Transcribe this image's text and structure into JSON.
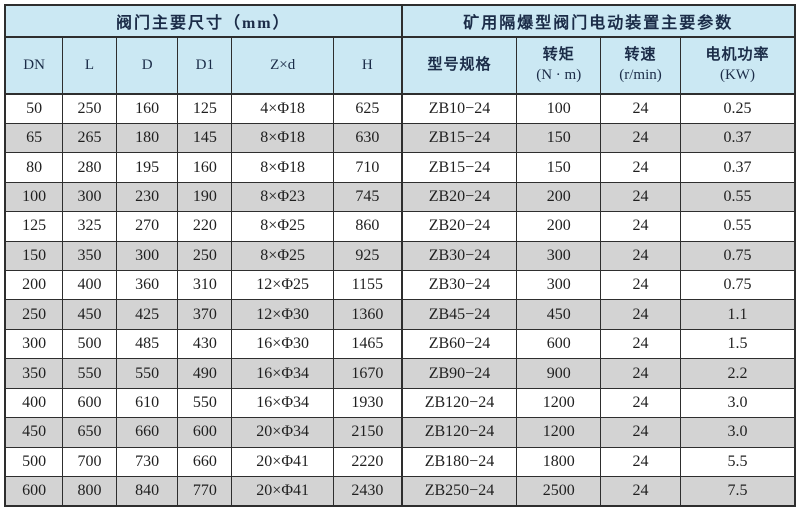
{
  "colors": {
    "page_bg": "#ffffff",
    "header_bg": "#cbe8f3",
    "row_white": "#ffffff",
    "row_gray": "#d3d3d3",
    "border": "#2e2e2e",
    "header_text": "#1b2c48",
    "data_text": "#1f1f1f"
  },
  "table": {
    "group_headers": [
      {
        "label": "阀门主要尺寸（mm）",
        "colspan": 6
      },
      {
        "label": "矿用隔爆型阀门电动装置主要参数",
        "colspan": 4
      }
    ],
    "columns": [
      {
        "key": "dn",
        "label": "DN"
      },
      {
        "key": "l",
        "label": "L"
      },
      {
        "key": "d",
        "label": "D"
      },
      {
        "key": "d1",
        "label": "D1"
      },
      {
        "key": "zxd",
        "label": "Z×d"
      },
      {
        "key": "h",
        "label": "H"
      },
      {
        "key": "model",
        "label": "型号规格"
      },
      {
        "key": "torque",
        "label": "转矩",
        "sub": "(N · m)"
      },
      {
        "key": "speed",
        "label": "转速",
        "sub": "(r/min)"
      },
      {
        "key": "power",
        "label": "电机功率",
        "sub": "(KW)"
      }
    ],
    "rows": [
      [
        "50",
        "250",
        "160",
        "125",
        "4×Φ18",
        "625",
        "ZB10−24",
        "100",
        "24",
        "0.25"
      ],
      [
        "65",
        "265",
        "180",
        "145",
        "8×Φ18",
        "630",
        "ZB15−24",
        "150",
        "24",
        "0.37"
      ],
      [
        "80",
        "280",
        "195",
        "160",
        "8×Φ18",
        "710",
        "ZB15−24",
        "150",
        "24",
        "0.37"
      ],
      [
        "100",
        "300",
        "230",
        "190",
        "8×Φ23",
        "745",
        "ZB20−24",
        "200",
        "24",
        "0.55"
      ],
      [
        "125",
        "325",
        "270",
        "220",
        "8×Φ25",
        "860",
        "ZB20−24",
        "200",
        "24",
        "0.55"
      ],
      [
        "150",
        "350",
        "300",
        "250",
        "8×Φ25",
        "925",
        "ZB30−24",
        "300",
        "24",
        "0.75"
      ],
      [
        "200",
        "400",
        "360",
        "310",
        "12×Φ25",
        "1155",
        "ZB30−24",
        "300",
        "24",
        "0.75"
      ],
      [
        "250",
        "450",
        "425",
        "370",
        "12×Φ30",
        "1360",
        "ZB45−24",
        "450",
        "24",
        "1.1"
      ],
      [
        "300",
        "500",
        "485",
        "430",
        "16×Φ30",
        "1465",
        "ZB60−24",
        "600",
        "24",
        "1.5"
      ],
      [
        "350",
        "550",
        "550",
        "490",
        "16×Φ34",
        "1670",
        "ZB90−24",
        "900",
        "24",
        "2.2"
      ],
      [
        "400",
        "600",
        "610",
        "550",
        "16×Φ34",
        "1930",
        "ZB120−24",
        "1200",
        "24",
        "3.0"
      ],
      [
        "450",
        "650",
        "660",
        "600",
        "20×Φ34",
        "2150",
        "ZB120−24",
        "1200",
        "24",
        "3.0"
      ],
      [
        "500",
        "700",
        "730",
        "660",
        "20×Φ41",
        "2220",
        "ZB180−24",
        "1800",
        "24",
        "5.5"
      ],
      [
        "600",
        "800",
        "840",
        "770",
        "20×Φ41",
        "2430",
        "ZB250−24",
        "2500",
        "24",
        "7.5"
      ]
    ]
  }
}
